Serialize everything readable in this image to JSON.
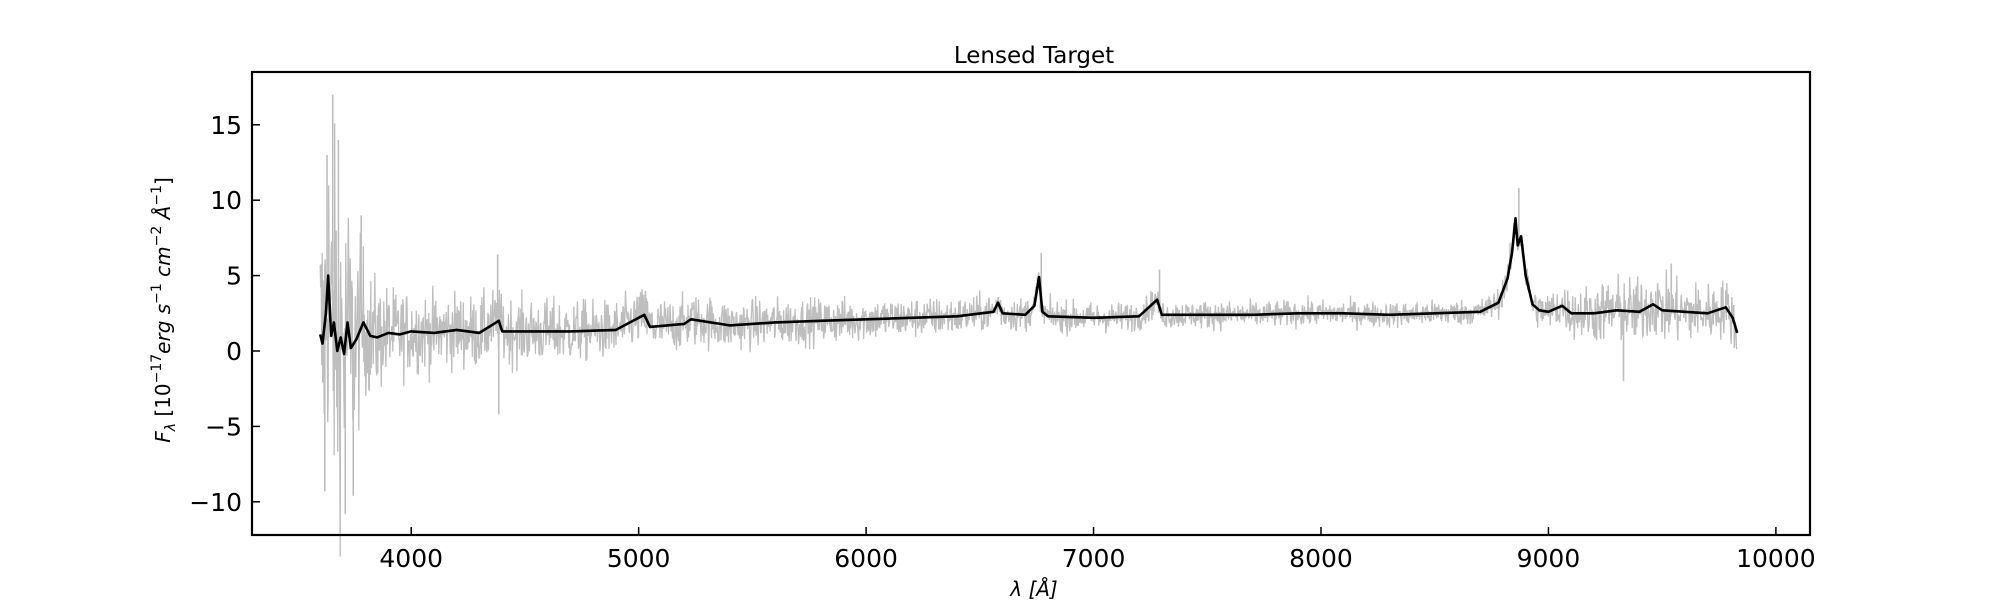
{
  "chart_data": {
    "type": "line",
    "title": "Lensed Target",
    "xlabel": "λ [Å]",
    "ylabel": "F_λ [10^-17 erg s^-1 cm^-2 Å^-1]",
    "ylabel_parts": {
      "base": "F",
      "sub": "λ",
      "prefix": " [10",
      "exp1": "−17",
      "erg": "erg s",
      "exp2": "−1",
      "cm": " cm",
      "exp3": "−2",
      "ang": " Å",
      "exp4": "−1",
      "suffix": "]"
    },
    "xlim": [
      3300,
      10150
    ],
    "ylim": [
      -12.2,
      18.5
    ],
    "xticks": [
      4000,
      5000,
      6000,
      7000,
      8000,
      9000,
      10000
    ],
    "xtick_labels": [
      "4000",
      "5000",
      "6000",
      "7000",
      "8000",
      "9000",
      "10000"
    ],
    "yticks": [
      -10,
      -5,
      0,
      5,
      10,
      15
    ],
    "ytick_labels": [
      "−10",
      "−5",
      "0",
      "5",
      "10",
      "15"
    ],
    "grid": false,
    "colors": {
      "raw": "#bebebe",
      "smoothed": "#000000"
    },
    "series": [
      {
        "role": "raw",
        "x_range": [
          3600,
          9830
        ],
        "noise_envelope": [
          [
            3600,
            6.5
          ],
          [
            3650,
            9.0
          ],
          [
            3700,
            7.5
          ],
          [
            3750,
            5.0
          ],
          [
            3800,
            3.2
          ],
          [
            3900,
            2.2
          ],
          [
            4000,
            1.9
          ],
          [
            4400,
            1.6
          ],
          [
            5000,
            1.3
          ],
          [
            6000,
            1.0
          ],
          [
            7000,
            0.7
          ],
          [
            8000,
            0.6
          ],
          [
            8700,
            0.6
          ],
          [
            9000,
            0.9
          ],
          [
            9300,
            1.6
          ],
          [
            9500,
            1.5
          ],
          [
            9830,
            1.3
          ]
        ],
        "spikes": [
          [
            3620,
            -9.3
          ],
          [
            3630,
            13.0
          ],
          [
            3655,
            17.0
          ],
          [
            3680,
            14.0
          ],
          [
            3710,
            -10.8
          ],
          [
            3745,
            -9.6
          ],
          [
            3780,
            9.0
          ],
          [
            4380,
            6.4
          ],
          [
            4385,
            -4.2
          ],
          [
            5030,
            4.0
          ],
          [
            6770,
            6.5
          ],
          [
            7290,
            5.4
          ],
          [
            8870,
            10.8
          ],
          [
            9330,
            -2.0
          ],
          [
            9480,
            4.5
          ],
          [
            9540,
            5.8
          ]
        ]
      },
      {
        "role": "smoothed",
        "points": [
          [
            3600,
            1.1
          ],
          [
            3610,
            0.5
          ],
          [
            3625,
            2.5
          ],
          [
            3635,
            5.0
          ],
          [
            3648,
            1.0
          ],
          [
            3660,
            1.9
          ],
          [
            3675,
            0.0
          ],
          [
            3690,
            0.9
          ],
          [
            3705,
            -0.2
          ],
          [
            3720,
            1.9
          ],
          [
            3735,
            0.2
          ],
          [
            3760,
            0.8
          ],
          [
            3790,
            1.9
          ],
          [
            3820,
            1.0
          ],
          [
            3850,
            0.9
          ],
          [
            3900,
            1.2
          ],
          [
            3950,
            1.1
          ],
          [
            4000,
            1.3
          ],
          [
            4100,
            1.2
          ],
          [
            4200,
            1.4
          ],
          [
            4300,
            1.2
          ],
          [
            4385,
            2.0
          ],
          [
            4400,
            1.3
          ],
          [
            4500,
            1.3
          ],
          [
            4700,
            1.3
          ],
          [
            4900,
            1.4
          ],
          [
            5025,
            2.4
          ],
          [
            5050,
            1.6
          ],
          [
            5200,
            1.8
          ],
          [
            5230,
            2.1
          ],
          [
            5400,
            1.7
          ],
          [
            5600,
            1.9
          ],
          [
            5800,
            2.0
          ],
          [
            6000,
            2.1
          ],
          [
            6200,
            2.2
          ],
          [
            6400,
            2.3
          ],
          [
            6560,
            2.6
          ],
          [
            6580,
            3.2
          ],
          [
            6600,
            2.5
          ],
          [
            6700,
            2.4
          ],
          [
            6740,
            3.0
          ],
          [
            6760,
            4.9
          ],
          [
            6775,
            2.6
          ],
          [
            6800,
            2.3
          ],
          [
            7000,
            2.2
          ],
          [
            7200,
            2.3
          ],
          [
            7280,
            3.4
          ],
          [
            7300,
            2.4
          ],
          [
            7500,
            2.4
          ],
          [
            7700,
            2.4
          ],
          [
            7900,
            2.5
          ],
          [
            8100,
            2.5
          ],
          [
            8300,
            2.4
          ],
          [
            8500,
            2.5
          ],
          [
            8700,
            2.6
          ],
          [
            8780,
            3.2
          ],
          [
            8820,
            4.8
          ],
          [
            8840,
            6.5
          ],
          [
            8855,
            8.8
          ],
          [
            8865,
            7.0
          ],
          [
            8880,
            7.6
          ],
          [
            8900,
            5.0
          ],
          [
            8930,
            3.1
          ],
          [
            8960,
            2.7
          ],
          [
            9000,
            2.6
          ],
          [
            9060,
            3.0
          ],
          [
            9100,
            2.5
          ],
          [
            9200,
            2.5
          ],
          [
            9300,
            2.7
          ],
          [
            9400,
            2.6
          ],
          [
            9460,
            3.1
          ],
          [
            9500,
            2.7
          ],
          [
            9600,
            2.6
          ],
          [
            9700,
            2.5
          ],
          [
            9780,
            2.9
          ],
          [
            9810,
            2.2
          ],
          [
            9830,
            1.2
          ]
        ]
      }
    ]
  }
}
